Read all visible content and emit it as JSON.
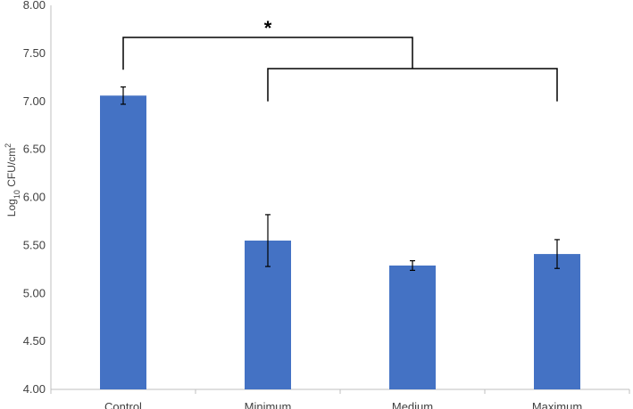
{
  "chart_data": {
    "type": "bar",
    "categories": [
      "Control",
      "Minimum",
      "Medium",
      "Maximum"
    ],
    "values": [
      7.06,
      5.55,
      5.29,
      5.41
    ],
    "error": [
      0.09,
      0.27,
      0.05,
      0.15
    ],
    "ylim": [
      4.0,
      8.0
    ],
    "yticks": [
      "4.00",
      "4.50",
      "5.00",
      "5.50",
      "6.00",
      "6.50",
      "7.00",
      "7.50",
      "8.00"
    ],
    "ylabel": {
      "prefix": "Log",
      "sub": "10",
      "unit": " CFU/cm",
      "sup": "2"
    },
    "bar_color": "#4472C4",
    "significance": {
      "label": "*",
      "compare": "Control",
      "against": [
        "Minimum",
        "Medium",
        "Maximum"
      ]
    },
    "grid": false,
    "legend": "none"
  }
}
